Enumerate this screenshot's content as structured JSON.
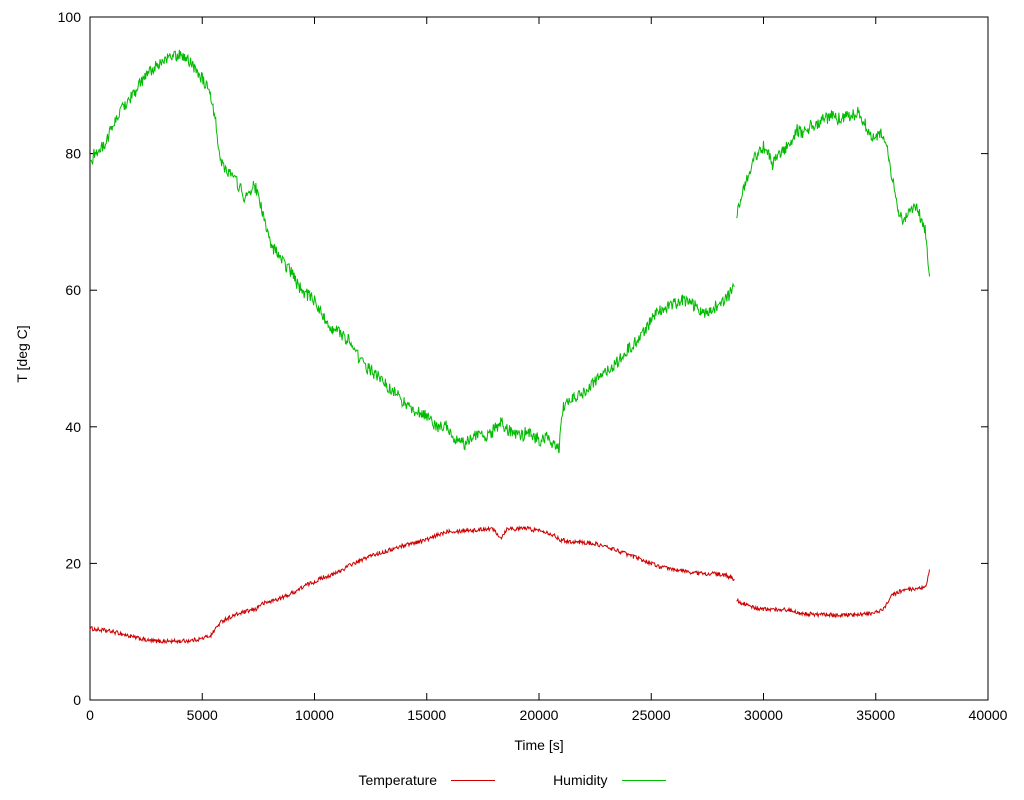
{
  "chart_data": {
    "type": "line",
    "title": "",
    "xlabel": "Time [s]",
    "ylabel": "T [deg C]",
    "xlim": [
      0,
      40000
    ],
    "ylim": [
      0,
      100
    ],
    "xticks": [
      0,
      5000,
      10000,
      15000,
      20000,
      25000,
      30000,
      35000,
      40000
    ],
    "yticks": [
      0,
      20,
      40,
      60,
      80,
      100
    ],
    "grid": false,
    "legend_position": "bottom-center",
    "series": [
      {
        "name": "Temperature",
        "color": "#cc0000",
        "noise": 0.3,
        "segments": [
          [
            [
              0,
              10.5
            ],
            [
              300,
              10.3
            ],
            [
              600,
              10.2
            ],
            [
              1000,
              10.0
            ],
            [
              1400,
              9.7
            ],
            [
              1800,
              9.3
            ],
            [
              2200,
              9.0
            ],
            [
              2600,
              8.7
            ],
            [
              3000,
              8.6
            ],
            [
              3500,
              8.6
            ],
            [
              4000,
              8.6
            ],
            [
              4500,
              8.7
            ],
            [
              5000,
              9.0
            ],
            [
              5400,
              9.5
            ],
            [
              5600,
              10.5
            ],
            [
              5800,
              11.3
            ],
            [
              6000,
              11.8
            ],
            [
              6300,
              12.2
            ],
            [
              6600,
              12.6
            ],
            [
              7000,
              13.0
            ],
            [
              7400,
              13.3
            ],
            [
              7600,
              14.0
            ],
            [
              8000,
              14.4
            ],
            [
              8400,
              14.8
            ],
            [
              8800,
              15.3
            ],
            [
              9200,
              16.0
            ],
            [
              9600,
              16.8
            ],
            [
              10000,
              17.3
            ],
            [
              10400,
              18.0
            ],
            [
              10800,
              18.3
            ],
            [
              11200,
              19.0
            ],
            [
              11600,
              19.8
            ],
            [
              12000,
              20.3
            ],
            [
              12400,
              21.0
            ],
            [
              12800,
              21.4
            ],
            [
              13200,
              21.8
            ],
            [
              13600,
              22.2
            ],
            [
              14000,
              22.7
            ],
            [
              14400,
              23.0
            ],
            [
              14800,
              23.3
            ],
            [
              15200,
              23.7
            ],
            [
              15600,
              24.3
            ],
            [
              16000,
              24.8
            ],
            [
              16400,
              24.7
            ],
            [
              16800,
              24.9
            ],
            [
              17200,
              24.8
            ],
            [
              17600,
              25.1
            ],
            [
              18000,
              25.0
            ],
            [
              18300,
              23.7
            ],
            [
              18600,
              25.2
            ],
            [
              19000,
              25.0
            ],
            [
              19400,
              25.2
            ],
            [
              19800,
              24.9
            ],
            [
              20200,
              24.8
            ],
            [
              20600,
              24.2
            ],
            [
              21000,
              23.4
            ],
            [
              21400,
              23.2
            ],
            [
              21800,
              23.1
            ],
            [
              22200,
              23.0
            ],
            [
              22600,
              22.8
            ],
            [
              23000,
              22.4
            ],
            [
              23400,
              22.0
            ],
            [
              23800,
              21.5
            ],
            [
              24200,
              21.0
            ],
            [
              24600,
              20.5
            ],
            [
              25000,
              20.0
            ],
            [
              25400,
              19.5
            ],
            [
              25800,
              19.2
            ],
            [
              26200,
              19.0
            ],
            [
              26600,
              18.8
            ],
            [
              27000,
              18.6
            ],
            [
              27400,
              18.5
            ],
            [
              27800,
              18.5
            ],
            [
              28200,
              18.3
            ],
            [
              28500,
              18.0
            ],
            [
              28700,
              17.7
            ]
          ],
          [
            [
              28800,
              14.6
            ],
            [
              29000,
              14.3
            ],
            [
              29300,
              13.8
            ],
            [
              29600,
              13.5
            ],
            [
              30000,
              13.3
            ],
            [
              30400,
              13.2
            ],
            [
              30800,
              13.3
            ],
            [
              31200,
              13.1
            ],
            [
              31600,
              12.8
            ],
            [
              32000,
              12.6
            ],
            [
              32400,
              12.5
            ],
            [
              32800,
              12.5
            ],
            [
              33200,
              12.4
            ],
            [
              33600,
              12.5
            ],
            [
              34000,
              12.4
            ],
            [
              34400,
              12.5
            ],
            [
              34800,
              12.7
            ],
            [
              35000,
              12.8
            ],
            [
              35200,
              13.0
            ],
            [
              35400,
              13.6
            ],
            [
              35600,
              14.8
            ],
            [
              35800,
              15.5
            ],
            [
              36000,
              15.8
            ],
            [
              36200,
              16.0
            ],
            [
              36500,
              16.2
            ],
            [
              36800,
              16.1
            ],
            [
              37000,
              16.3
            ],
            [
              37200,
              16.5
            ],
            [
              37300,
              17.5
            ],
            [
              37400,
              19.0
            ]
          ]
        ]
      },
      {
        "name": "Humidity",
        "color": "#00bb00",
        "noise": 0.9,
        "segments": [
          [
            [
              0,
              78
            ],
            [
              200,
              80
            ],
            [
              600,
              81
            ],
            [
              1000,
              84
            ],
            [
              1500,
              87
            ],
            [
              2000,
              89
            ],
            [
              2500,
              91.5
            ],
            [
              3000,
              93
            ],
            [
              3500,
              94
            ],
            [
              4000,
              94.5
            ],
            [
              4300,
              94
            ],
            [
              4700,
              92.5
            ],
            [
              5000,
              91
            ],
            [
              5300,
              89
            ],
            [
              5600,
              85
            ],
            [
              5800,
              79
            ],
            [
              6000,
              78
            ],
            [
              6300,
              77
            ],
            [
              6600,
              75.5
            ],
            [
              6900,
              73.5
            ],
            [
              7100,
              74
            ],
            [
              7300,
              75.5
            ],
            [
              7500,
              74
            ],
            [
              7700,
              71
            ],
            [
              8000,
              67
            ],
            [
              8300,
              65.5
            ],
            [
              8600,
              64
            ],
            [
              9000,
              62.5
            ],
            [
              9300,
              60.5
            ],
            [
              9600,
              59.5
            ],
            [
              10000,
              58.5
            ],
            [
              10400,
              56
            ],
            [
              10800,
              54.5
            ],
            [
              11200,
              53.5
            ],
            [
              11600,
              52.5
            ],
            [
              12000,
              50
            ],
            [
              12400,
              48.5
            ],
            [
              12800,
              47.5
            ],
            [
              13200,
              46
            ],
            [
              13600,
              45
            ],
            [
              14000,
              43.5
            ],
            [
              14400,
              42.5
            ],
            [
              14800,
              42
            ],
            [
              15200,
              41
            ],
            [
              15500,
              39.5
            ],
            [
              15800,
              40.5
            ],
            [
              16100,
              38.5
            ],
            [
              16400,
              38
            ],
            [
              16700,
              37.5
            ],
            [
              17000,
              38.5
            ],
            [
              17300,
              39
            ],
            [
              17600,
              38.5
            ],
            [
              18000,
              39.5
            ],
            [
              18300,
              40.5
            ],
            [
              18600,
              39.5
            ],
            [
              18900,
              39
            ],
            [
              19200,
              38.5
            ],
            [
              19500,
              39.5
            ],
            [
              19800,
              38.5
            ],
            [
              20100,
              38
            ],
            [
              20400,
              38.5
            ],
            [
              20700,
              37
            ],
            [
              20900,
              36.8
            ],
            [
              21000,
              41
            ],
            [
              21100,
              43
            ],
            [
              21500,
              44
            ],
            [
              22000,
              45
            ],
            [
              22500,
              46.5
            ],
            [
              23000,
              48
            ],
            [
              23500,
              49.5
            ],
            [
              24000,
              51.5
            ],
            [
              24500,
              53
            ],
            [
              25000,
              55.5
            ],
            [
              25300,
              57
            ],
            [
              25600,
              57.5
            ],
            [
              26000,
              58
            ],
            [
              26400,
              58.5
            ],
            [
              26800,
              58
            ],
            [
              27200,
              57
            ],
            [
              27500,
              56.5
            ],
            [
              27800,
              57.5
            ],
            [
              28100,
              58
            ],
            [
              28400,
              59
            ],
            [
              28700,
              60.5
            ]
          ],
          [
            [
              28800,
              71
            ],
            [
              29000,
              73.5
            ],
            [
              29200,
              76
            ],
            [
              29500,
              78.5
            ],
            [
              29800,
              80.5
            ],
            [
              30000,
              81
            ],
            [
              30200,
              80
            ],
            [
              30400,
              78.5
            ],
            [
              30600,
              80
            ],
            [
              30900,
              80.5
            ],
            [
              31200,
              81.5
            ],
            [
              31500,
              83.5
            ],
            [
              31800,
              83
            ],
            [
              32100,
              84
            ],
            [
              32400,
              84.5
            ],
            [
              32700,
              85
            ],
            [
              33000,
              85.5
            ],
            [
              33300,
              85
            ],
            [
              33600,
              85.5
            ],
            [
              33900,
              85.5
            ],
            [
              34200,
              86
            ],
            [
              34500,
              84.5
            ],
            [
              34800,
              82.5
            ],
            [
              35000,
              82.5
            ],
            [
              35200,
              83
            ],
            [
              35400,
              82.5
            ],
            [
              35600,
              79
            ],
            [
              35800,
              75.5
            ],
            [
              36000,
              71.5
            ],
            [
              36200,
              70
            ],
            [
              36400,
              71
            ],
            [
              36600,
              71.5
            ],
            [
              36800,
              72.5
            ],
            [
              37000,
              70.5
            ],
            [
              37200,
              69
            ],
            [
              37300,
              65
            ],
            [
              37400,
              62
            ]
          ]
        ]
      }
    ]
  },
  "axes": {
    "xlabel": "Time [s]",
    "ylabel": "T [deg C]"
  },
  "legend": {
    "temperature_label": "Temperature",
    "humidity_label": "Humidity"
  }
}
